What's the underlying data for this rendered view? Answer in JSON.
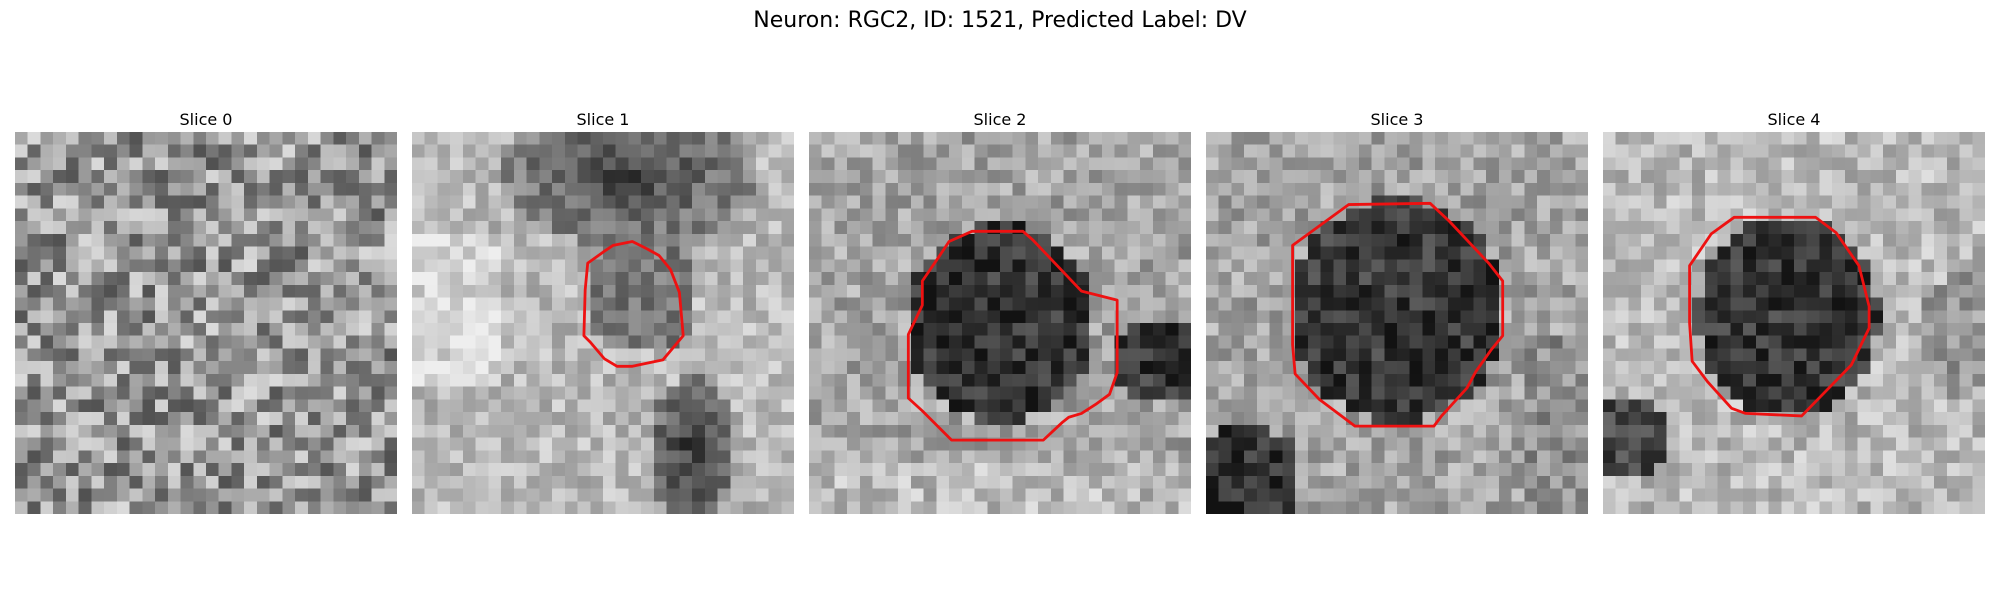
{
  "figure": {
    "title": "Neuron: RGC2, ID: 1521, Predicted Label: DV"
  },
  "panels": [
    {
      "title": "Slice 0",
      "has_contour": false
    },
    {
      "title": "Slice 1",
      "has_contour": true
    },
    {
      "title": "Slice 2",
      "has_contour": true
    },
    {
      "title": "Slice 3",
      "has_contour": true
    },
    {
      "title": "Slice 4",
      "has_contour": true
    }
  ],
  "colors": {
    "contour": "#ee1111",
    "background": "#ffffff"
  }
}
